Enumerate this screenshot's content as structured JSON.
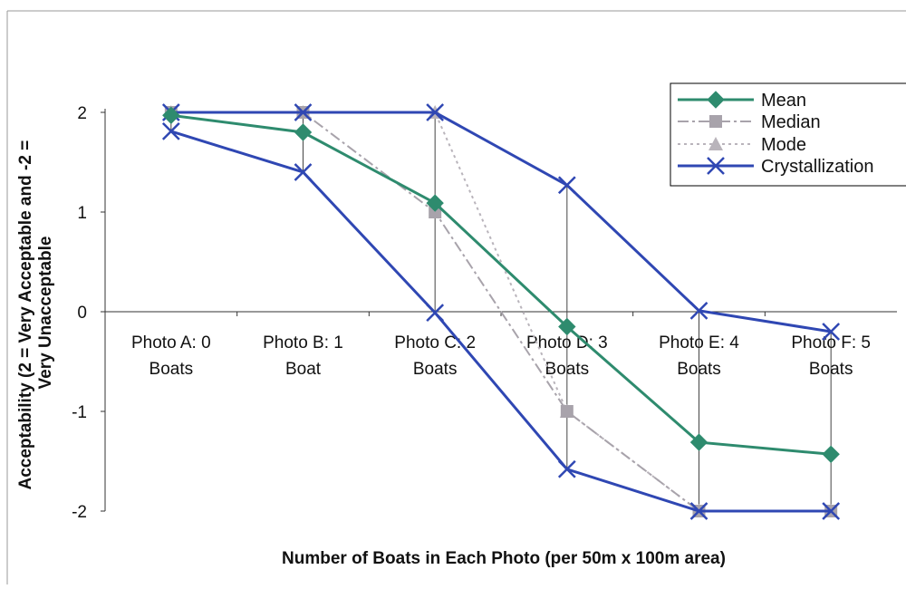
{
  "chart_data": {
    "type": "line",
    "title": "",
    "xlabel": "Number of Boats in Each Photo (per 50m x 100m area)",
    "ylabel_lines": [
      "Acceptability (2 = Very Acceptable and -2 =",
      "Very Unacceptable"
    ],
    "ylim": [
      -2,
      2
    ],
    "yticks": [
      "2",
      "1",
      "0",
      "-1",
      "-2"
    ],
    "ytick_values": [
      2,
      1,
      0,
      -1,
      -2
    ],
    "categories": [
      [
        "Photo A: 0",
        "Boats"
      ],
      [
        "Photo B: 1",
        "Boat"
      ],
      [
        "Photo C: 2",
        "Boats"
      ],
      [
        "Photo D: 3",
        "Boats"
      ],
      [
        "Photo E: 4",
        "Boats"
      ],
      [
        "Photo F: 5",
        "Boats"
      ]
    ],
    "series": [
      {
        "name": "Mean",
        "values": [
          1.97,
          1.8,
          1.09,
          -0.15,
          -1.31,
          -1.43
        ],
        "color": "#2e8b6e",
        "marker": "diamond",
        "dash": "solid"
      },
      {
        "name": "Median",
        "values": [
          2,
          2,
          1,
          -1,
          -2,
          -2
        ],
        "color": "#a8a3ab",
        "marker": "square",
        "dash": "dashdot"
      },
      {
        "name": "Mode",
        "values": [
          2,
          2,
          2,
          -1,
          -2,
          -2
        ],
        "color": "#b9b4bb",
        "marker": "triangle",
        "dash": "dotted"
      },
      {
        "name": "Crystallization",
        "upper": [
          2,
          2,
          2,
          1.27,
          0.01,
          -0.2
        ],
        "lower": [
          1.81,
          1.4,
          -0.01,
          -1.58,
          -2,
          -2
        ],
        "color": "#2f47b3",
        "marker": "x",
        "dash": "solid"
      }
    ],
    "legend_position": "top-right",
    "grid": false,
    "drop_lines": true
  }
}
